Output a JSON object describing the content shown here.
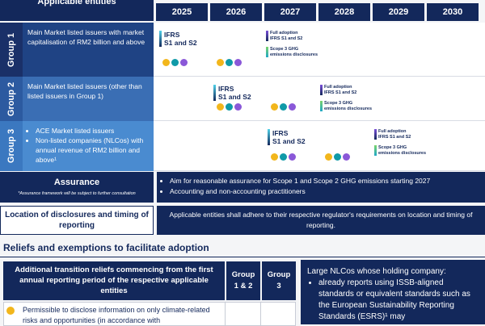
{
  "header": {
    "title": "Applicable entities",
    "years": [
      "2025",
      "2026",
      "2027",
      "2028",
      "2029",
      "2030"
    ]
  },
  "groups": [
    {
      "label": "Group 1",
      "description": [
        "Main Market listed issuers with market capitalisation of RM2 billion and above"
      ],
      "initial": "IFRS\nS1 and S2",
      "full": "Full adoption\nIFRS S1 and S2",
      "scope3": "Scope 3 GHG\nemissions disclosures"
    },
    {
      "label": "Group 2",
      "description": [
        "Main Market listed issuers (other than listed issuers in Group 1)"
      ],
      "initial": "IFRS\nS1 and S2",
      "full": "Full adoption\nIFRS S1 and S2",
      "scope3": "Scope 3 GHG\nemissions disclosures"
    },
    {
      "label": "Group 3",
      "description": [
        "ACE Market listed issuers",
        "Non-listed companies (NLCos) with annual revenue of RM2 billion and above¹"
      ],
      "initial": "IFRS\nS1 and S2",
      "full": "Full adoption\nIFRS S1 and S2",
      "scope3": "Scope 3 GHG\nemissions disclosures"
    }
  ],
  "assurance": {
    "title": "Assurance",
    "note": "*Assurance framework will be subject to further consultation",
    "items": [
      "Aim for reasonable assurance for Scope 1 and Scope 2 GHG emissions starting 2027",
      "Accounting and non-accounting practitioners"
    ]
  },
  "location": {
    "title": "Location of disclosures and timing of reporting",
    "text": "Applicable entities shall adhere to their respective regulator's requirements on location and timing of reporting."
  },
  "reliefs": {
    "heading": "Reliefs and exemptions to facilitate adoption",
    "table": {
      "header": [
        "Additional transition reliefs commencing from the first annual reporting period of the respective applicable entities",
        "Group 1 & 2",
        "Group 3"
      ],
      "rows": [
        [
          "Permissible to disclose information on only climate-related risks and opportunities (in accordance with"
        ]
      ]
    },
    "box": {
      "title": "Large NLCos whose holding company:",
      "items": [
        "already reports using ISSB-aligned standards or equivalent standards such as the European Sustainability Reporting Standards (ESRS)¹ may"
      ]
    }
  }
}
